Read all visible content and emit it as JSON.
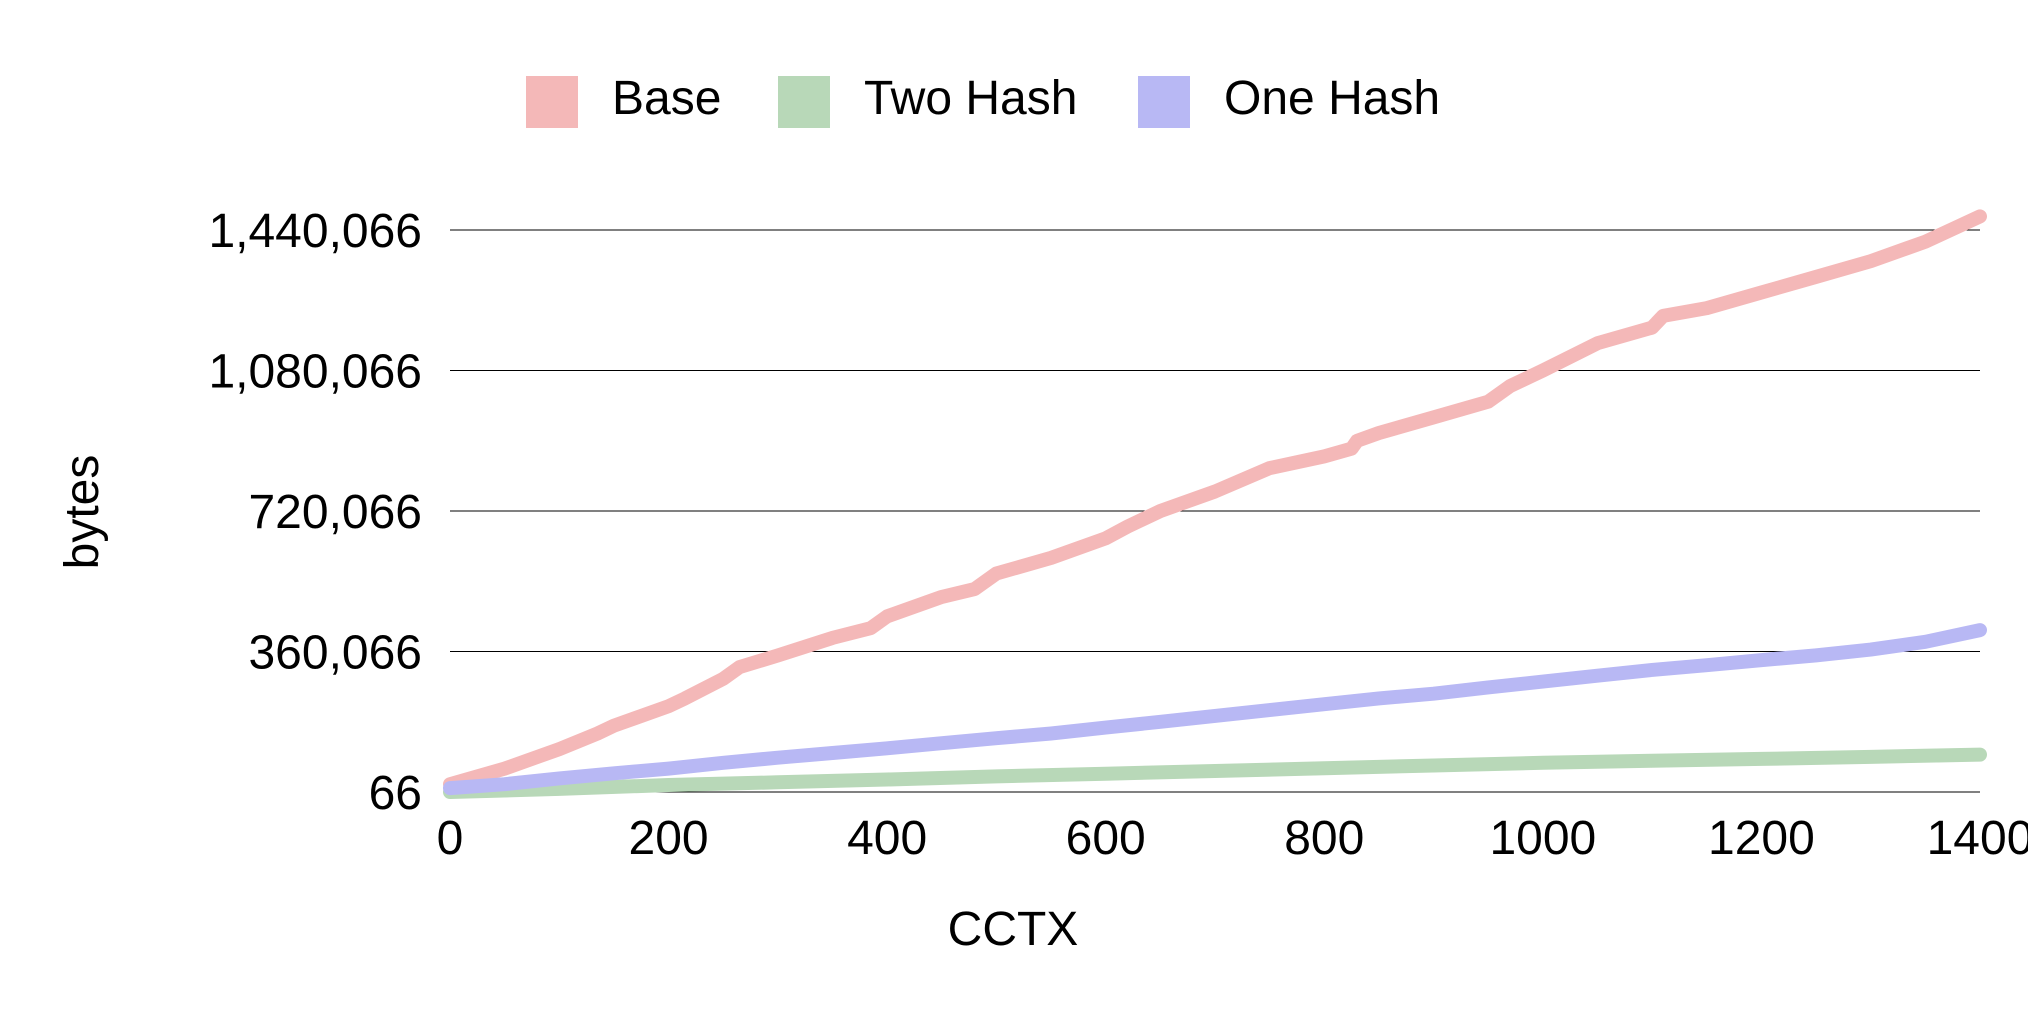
{
  "chart_data": {
    "type": "line",
    "title": "",
    "xlabel": "CCTX",
    "ylabel": "bytes",
    "xlim": [
      0,
      1400
    ],
    "ylim": [
      66,
      1440066
    ],
    "grid": true,
    "legend_position": "top",
    "x_ticks": [
      0,
      200,
      400,
      600,
      800,
      1000,
      1200,
      1400
    ],
    "x_tick_labels": [
      "0",
      "200",
      "400",
      "600",
      "800",
      "1000",
      "1200",
      "1400"
    ],
    "y_ticks": [
      66,
      360066,
      720066,
      1080066,
      1440066
    ],
    "y_tick_labels": [
      "66",
      "360,066",
      "720,066",
      "1,080,066",
      "1,440,066"
    ],
    "series": [
      {
        "name": "Base",
        "color": "#f4b8b8",
        "x": [
          0,
          50,
          100,
          135,
          150,
          200,
          215,
          250,
          265,
          300,
          350,
          385,
          400,
          450,
          480,
          500,
          550,
          600,
          620,
          650,
          700,
          750,
          800,
          825,
          830,
          850,
          900,
          950,
          970,
          1000,
          1050,
          1100,
          1110,
          1150,
          1200,
          1250,
          1300,
          1350,
          1400
        ],
        "y": [
          20000,
          60000,
          110000,
          150000,
          170000,
          220000,
          240000,
          290000,
          320000,
          350000,
          395000,
          420000,
          450000,
          500000,
          520000,
          560000,
          600000,
          650000,
          680000,
          720000,
          770000,
          830000,
          860000,
          880000,
          900000,
          920000,
          960000,
          1000000,
          1040000,
          1080000,
          1150000,
          1190000,
          1220000,
          1240000,
          1280000,
          1320000,
          1360000,
          1410000,
          1475000
        ]
      },
      {
        "name": "Two Hash",
        "color": "#b8d8b8",
        "x": [
          0,
          100,
          200,
          300,
          400,
          500,
          600,
          700,
          800,
          900,
          1000,
          1100,
          1200,
          1300,
          1400
        ],
        "y": [
          0,
          8000,
          18000,
          25000,
          32000,
          40000,
          47000,
          54000,
          61000,
          68000,
          75000,
          80000,
          85000,
          90000,
          96000
        ]
      },
      {
        "name": "One Hash",
        "color": "#b8b8f4",
        "x": [
          0,
          50,
          100,
          150,
          200,
          250,
          300,
          350,
          400,
          450,
          500,
          550,
          600,
          650,
          700,
          750,
          800,
          850,
          900,
          950,
          1000,
          1050,
          1100,
          1150,
          1200,
          1250,
          1300,
          1350,
          1400
        ],
        "y": [
          10000,
          20000,
          35000,
          48000,
          60000,
          75000,
          88000,
          100000,
          112000,
          125000,
          138000,
          150000,
          165000,
          180000,
          195000,
          210000,
          225000,
          240000,
          252000,
          268000,
          283000,
          298000,
          313000,
          325000,
          338000,
          350000,
          365000,
          385000,
          415000
        ]
      }
    ]
  }
}
